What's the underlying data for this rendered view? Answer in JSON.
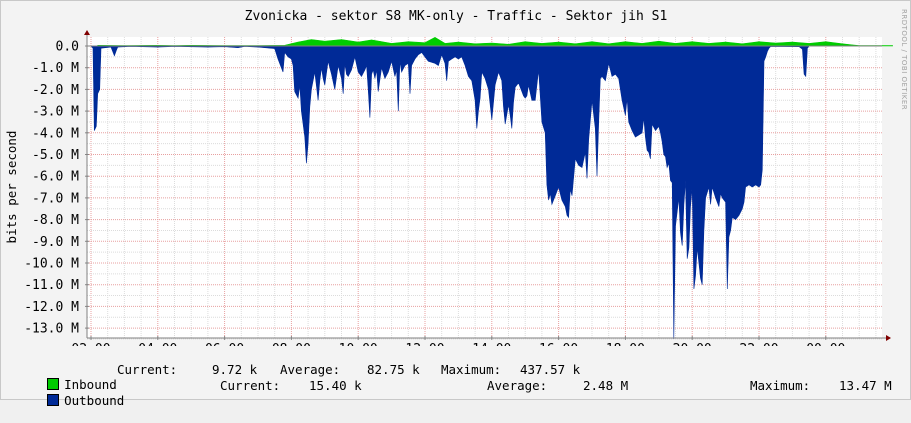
{
  "chart_data": {
    "type": "area",
    "title": "Zvonicka - sektor S8 MK-only - Traffic - Sektor jih S1",
    "ylabel": "bits per second",
    "xlabel": "",
    "ylim": [
      -13.5,
      0.35
    ],
    "y_unit": "M",
    "y_ticks": [
      "0.0",
      "-1.0 M",
      "-2.0 M",
      "-3.0 M",
      "-4.0 M",
      "-5.0 M",
      "-6.0 M",
      "-7.0 M",
      "-8.0 M",
      "-9.0 M",
      "-10.0 M",
      "-11.0 M",
      "-12.0 M",
      "-13.0 M"
    ],
    "x_ticks": [
      "02:00",
      "04:00",
      "06:00",
      "08:00",
      "10:00",
      "12:00",
      "14:00",
      "16:00",
      "18:00",
      "20:00",
      "22:00",
      "00:00"
    ],
    "grid": true,
    "series": [
      {
        "name": "Inbound",
        "color": "#00cc00",
        "points": [
          [
            0.2,
            0.03
          ],
          [
            1.0,
            0.02
          ],
          [
            2.0,
            0.03
          ],
          [
            2.5,
            0.02
          ],
          [
            3.0,
            0.03
          ],
          [
            4.0,
            0.02
          ],
          [
            5.0,
            0.02
          ],
          [
            5.8,
            0.03
          ],
          [
            6.2,
            0.18
          ],
          [
            6.6,
            0.3
          ],
          [
            7.0,
            0.22
          ],
          [
            7.5,
            0.3
          ],
          [
            8.0,
            0.18
          ],
          [
            8.4,
            0.28
          ],
          [
            9.0,
            0.12
          ],
          [
            9.5,
            0.2
          ],
          [
            10.0,
            0.15
          ],
          [
            10.3,
            0.4
          ],
          [
            10.6,
            0.12
          ],
          [
            11.0,
            0.18
          ],
          [
            11.5,
            0.1
          ],
          [
            12.0,
            0.14
          ],
          [
            12.5,
            0.08
          ],
          [
            13.0,
            0.2
          ],
          [
            13.5,
            0.12
          ],
          [
            14.0,
            0.18
          ],
          [
            14.5,
            0.1
          ],
          [
            15.0,
            0.2
          ],
          [
            15.5,
            0.1
          ],
          [
            16.0,
            0.2
          ],
          [
            16.5,
            0.12
          ],
          [
            17.0,
            0.22
          ],
          [
            17.5,
            0.12
          ],
          [
            18.0,
            0.2
          ],
          [
            18.5,
            0.12
          ],
          [
            19.0,
            0.18
          ],
          [
            19.5,
            0.1
          ],
          [
            20.0,
            0.2
          ],
          [
            20.5,
            0.14
          ],
          [
            21.0,
            0.18
          ],
          [
            21.5,
            0.12
          ],
          [
            22.0,
            0.2
          ],
          [
            22.5,
            0.1
          ],
          [
            22.8,
            0.05
          ],
          [
            23.0,
            0.02
          ],
          [
            24.0,
            0.02
          ]
        ]
      },
      {
        "name": "Outbound",
        "color": "#002a97",
        "points": [
          [
            0.0,
            0
          ],
          [
            0.06,
            -0.1
          ],
          [
            0.1,
            -3.9
          ],
          [
            0.16,
            -3.7
          ],
          [
            0.2,
            -2.2
          ],
          [
            0.26,
            -2.0
          ],
          [
            0.3,
            -0.1
          ],
          [
            0.6,
            -0.05
          ],
          [
            0.7,
            -0.45
          ],
          [
            0.76,
            -0.2
          ],
          [
            0.8,
            -0.05
          ],
          [
            1.2,
            -0.02
          ],
          [
            2.0,
            -0.05
          ],
          [
            2.5,
            -0.02
          ],
          [
            3.5,
            -0.05
          ],
          [
            4.0,
            -0.03
          ],
          [
            4.4,
            -0.08
          ],
          [
            4.6,
            -0.02
          ],
          [
            5.0,
            -0.05
          ],
          [
            5.5,
            -0.12
          ],
          [
            5.6,
            -0.6
          ],
          [
            5.75,
            -1.2
          ],
          [
            5.8,
            -0.3
          ],
          [
            5.9,
            -0.5
          ],
          [
            6.0,
            -0.6
          ],
          [
            6.05,
            -0.9
          ],
          [
            6.1,
            -2.1
          ],
          [
            6.2,
            -2.4
          ],
          [
            6.25,
            -1.8
          ],
          [
            6.3,
            -3.0
          ],
          [
            6.35,
            -3.6
          ],
          [
            6.4,
            -4.2
          ],
          [
            6.45,
            -5.4
          ],
          [
            6.5,
            -4.5
          ],
          [
            6.55,
            -2.8
          ],
          [
            6.6,
            -2.0
          ],
          [
            6.7,
            -1.2
          ],
          [
            6.8,
            -2.5
          ],
          [
            6.85,
            -1.6
          ],
          [
            6.9,
            -1.0
          ],
          [
            6.95,
            -1.5
          ],
          [
            7.0,
            -1.8
          ],
          [
            7.1,
            -0.7
          ],
          [
            7.2,
            -1.3
          ],
          [
            7.3,
            -2.0
          ],
          [
            7.4,
            -0.9
          ],
          [
            7.5,
            -1.5
          ],
          [
            7.55,
            -2.2
          ],
          [
            7.6,
            -0.8
          ],
          [
            7.65,
            -1.3
          ],
          [
            7.7,
            -1.4
          ],
          [
            7.8,
            -1.1
          ],
          [
            7.9,
            -0.5
          ],
          [
            8.0,
            -1.2
          ],
          [
            8.1,
            -1.4
          ],
          [
            8.2,
            -1.1
          ],
          [
            8.25,
            -0.9
          ],
          [
            8.3,
            -2.0
          ],
          [
            8.35,
            -3.3
          ],
          [
            8.4,
            -1.3
          ],
          [
            8.45,
            -1.1
          ],
          [
            8.5,
            -1.5
          ],
          [
            8.55,
            -1.1
          ],
          [
            8.6,
            -2.1
          ],
          [
            8.7,
            -1.0
          ],
          [
            8.8,
            -1.5
          ],
          [
            8.9,
            -1.2
          ],
          [
            9.0,
            -0.7
          ],
          [
            9.1,
            -1.4
          ],
          [
            9.15,
            -1.1
          ],
          [
            9.2,
            -3.0
          ],
          [
            9.25,
            -0.7
          ],
          [
            9.3,
            -1.2
          ],
          [
            9.4,
            -0.9
          ],
          [
            9.5,
            -0.8
          ],
          [
            9.55,
            -2.2
          ],
          [
            9.6,
            -0.9
          ],
          [
            9.7,
            -0.6
          ],
          [
            9.8,
            -0.4
          ],
          [
            9.9,
            -0.3
          ],
          [
            10.0,
            -0.5
          ],
          [
            10.1,
            -0.7
          ],
          [
            10.3,
            -0.8
          ],
          [
            10.4,
            -0.9
          ],
          [
            10.5,
            -0.4
          ],
          [
            10.6,
            -0.8
          ],
          [
            10.65,
            -1.6
          ],
          [
            10.7,
            -0.7
          ],
          [
            10.8,
            -0.6
          ],
          [
            10.9,
            -0.5
          ],
          [
            11.0,
            -0.6
          ],
          [
            11.1,
            -0.5
          ],
          [
            11.2,
            -0.9
          ],
          [
            11.3,
            -1.4
          ],
          [
            11.4,
            -1.6
          ],
          [
            11.5,
            -2.5
          ],
          [
            11.55,
            -3.8
          ],
          [
            11.6,
            -3.0
          ],
          [
            11.65,
            -2.4
          ],
          [
            11.7,
            -1.2
          ],
          [
            11.8,
            -1.5
          ],
          [
            11.9,
            -2.0
          ],
          [
            12.0,
            -3.4
          ],
          [
            12.05,
            -2.6
          ],
          [
            12.1,
            -1.8
          ],
          [
            12.2,
            -1.2
          ],
          [
            12.3,
            -1.6
          ],
          [
            12.35,
            -2.8
          ],
          [
            12.4,
            -3.6
          ],
          [
            12.5,
            -2.7
          ],
          [
            12.55,
            -3.2
          ],
          [
            12.6,
            -3.8
          ],
          [
            12.65,
            -2.6
          ],
          [
            12.7,
            -1.9
          ],
          [
            12.8,
            -1.7
          ],
          [
            12.9,
            -2.1
          ],
          [
            12.95,
            -2.3
          ],
          [
            13.0,
            -2.4
          ],
          [
            13.05,
            -2.3
          ],
          [
            13.1,
            -1.8
          ],
          [
            13.2,
            -2.5
          ],
          [
            13.3,
            -2.5
          ],
          [
            13.4,
            -1.1
          ],
          [
            13.5,
            -3.5
          ],
          [
            13.6,
            -4.0
          ],
          [
            13.65,
            -6.4
          ],
          [
            13.7,
            -7.1
          ],
          [
            13.75,
            -6.8
          ],
          [
            13.8,
            -7.3
          ],
          [
            13.9,
            -6.9
          ],
          [
            14.0,
            -6.5
          ],
          [
            14.1,
            -7.1
          ],
          [
            14.2,
            -7.4
          ],
          [
            14.25,
            -7.8
          ],
          [
            14.3,
            -7.9
          ],
          [
            14.35,
            -6.6
          ],
          [
            14.4,
            -6.9
          ],
          [
            14.5,
            -5.2
          ],
          [
            14.6,
            -5.5
          ],
          [
            14.7,
            -5.6
          ],
          [
            14.8,
            -4.9
          ],
          [
            14.85,
            -6.1
          ],
          [
            14.9,
            -4.3
          ],
          [
            15.0,
            -2.5
          ],
          [
            15.1,
            -3.8
          ],
          [
            15.15,
            -6.0
          ],
          [
            15.2,
            -3.5
          ],
          [
            15.25,
            -1.5
          ],
          [
            15.3,
            -1.4
          ],
          [
            15.4,
            -1.6
          ],
          [
            15.5,
            -0.8
          ],
          [
            15.55,
            -1.1
          ],
          [
            15.6,
            -1.4
          ],
          [
            15.7,
            -1.3
          ],
          [
            15.8,
            -1.5
          ],
          [
            15.85,
            -2.0
          ],
          [
            15.9,
            -2.5
          ],
          [
            16.0,
            -3.2
          ],
          [
            16.05,
            -2.4
          ],
          [
            16.1,
            -3.5
          ],
          [
            16.2,
            -3.9
          ],
          [
            16.3,
            -4.2
          ],
          [
            16.4,
            -4.1
          ],
          [
            16.5,
            -4.0
          ],
          [
            16.55,
            -3.3
          ],
          [
            16.6,
            -4.2
          ],
          [
            16.65,
            -4.8
          ],
          [
            16.7,
            -4.9
          ],
          [
            16.75,
            -5.2
          ],
          [
            16.8,
            -3.6
          ],
          [
            16.9,
            -3.9
          ],
          [
            17.0,
            -3.7
          ],
          [
            17.05,
            -4.0
          ],
          [
            17.1,
            -4.4
          ],
          [
            17.15,
            -5.0
          ],
          [
            17.2,
            -5.1
          ],
          [
            17.25,
            -5.6
          ],
          [
            17.3,
            -5.4
          ],
          [
            17.35,
            -6.2
          ],
          [
            17.4,
            -6.3
          ],
          [
            17.45,
            -13.5
          ],
          [
            17.5,
            -8.3
          ],
          [
            17.6,
            -7.0
          ],
          [
            17.65,
            -8.6
          ],
          [
            17.7,
            -9.2
          ],
          [
            17.75,
            -7.3
          ],
          [
            17.8,
            -6.2
          ],
          [
            17.85,
            -9.8
          ],
          [
            17.9,
            -9.3
          ],
          [
            17.95,
            -7.4
          ],
          [
            18.0,
            -6.5
          ],
          [
            18.05,
            -11.2
          ],
          [
            18.1,
            -10.6
          ],
          [
            18.15,
            -9.3
          ],
          [
            18.2,
            -10.0
          ],
          [
            18.25,
            -10.7
          ],
          [
            18.3,
            -11.0
          ],
          [
            18.35,
            -8.5
          ],
          [
            18.4,
            -7.0
          ],
          [
            18.5,
            -6.5
          ],
          [
            18.55,
            -7.3
          ],
          [
            18.6,
            -6.5
          ],
          [
            18.7,
            -7.0
          ],
          [
            18.8,
            -7.4
          ],
          [
            18.85,
            -6.8
          ],
          [
            18.9,
            -7.0
          ],
          [
            19.0,
            -7.2
          ],
          [
            19.05,
            -11.2
          ],
          [
            19.1,
            -8.8
          ],
          [
            19.15,
            -8.5
          ],
          [
            19.2,
            -7.9
          ],
          [
            19.3,
            -8.0
          ],
          [
            19.4,
            -7.8
          ],
          [
            19.5,
            -7.5
          ],
          [
            19.55,
            -7.2
          ],
          [
            19.6,
            -6.5
          ],
          [
            19.7,
            -6.4
          ],
          [
            19.8,
            -6.5
          ],
          [
            19.9,
            -6.4
          ],
          [
            20.0,
            -6.5
          ],
          [
            20.05,
            -6.4
          ],
          [
            20.1,
            -5.7
          ],
          [
            20.15,
            -0.7
          ],
          [
            20.2,
            -0.5
          ],
          [
            20.25,
            -0.25
          ],
          [
            20.3,
            -0.1
          ],
          [
            20.35,
            -0.02
          ],
          [
            21.2,
            -0.03
          ],
          [
            21.3,
            -0.15
          ],
          [
            21.35,
            -1.3
          ],
          [
            21.4,
            -1.4
          ],
          [
            21.45,
            -0.1
          ],
          [
            21.5,
            0
          ]
        ]
      }
    ]
  },
  "legend": {
    "inbound": {
      "label": "Inbound",
      "current_label": "Current:",
      "current": "9.72 k",
      "average_label": "Average:",
      "average": "82.75 k",
      "maximum_label": "Maximum:",
      "maximum": "437.57 k"
    },
    "outbound": {
      "label": "Outbound",
      "current_label": "Current:",
      "current": "15.40 k",
      "average_label": "Average:",
      "average": "2.48 M",
      "maximum_label": "Maximum:",
      "maximum": "13.47 M"
    }
  },
  "watermark": "RRDTOOL / TOBI OETIKER"
}
